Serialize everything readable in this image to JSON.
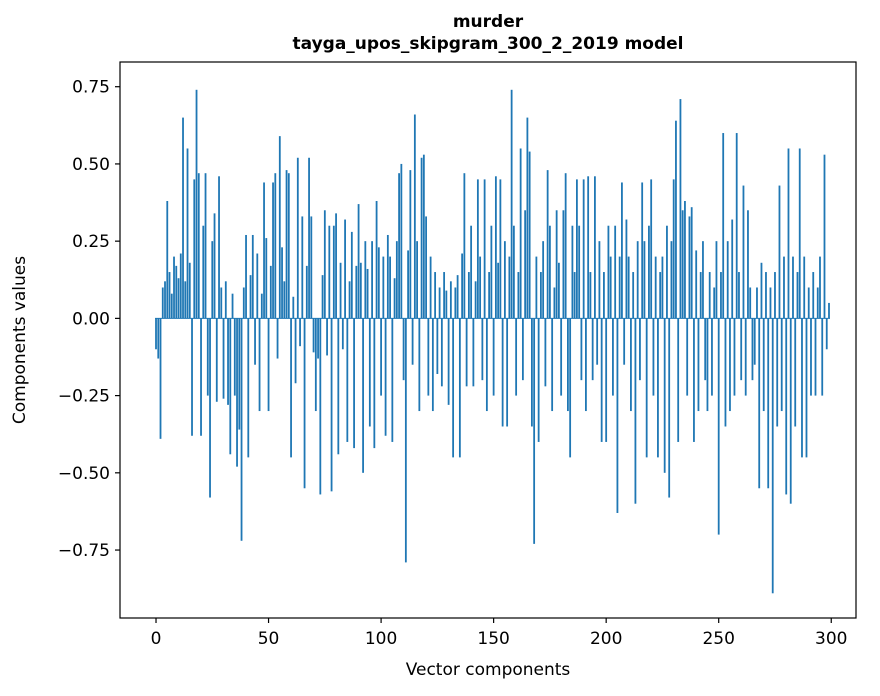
{
  "chart_data": {
    "type": "bar",
    "title": "murder",
    "subtitle": "tayga_upos_skipgram_300_2_2019 model",
    "xlabel": "Vector components",
    "ylabel": "Components values",
    "legend": null,
    "grid": false,
    "bar_color": "#1f77b4",
    "xlim": [
      -16,
      311
    ],
    "ylim": [
      -0.97,
      0.83
    ],
    "xticks": [
      0,
      50,
      100,
      150,
      200,
      250,
      300
    ],
    "yticks": [
      -0.75,
      -0.5,
      -0.25,
      0.0,
      0.25,
      0.5,
      0.75
    ],
    "x_start": 0,
    "values": [
      -0.1,
      -0.13,
      -0.39,
      0.1,
      0.12,
      0.38,
      0.15,
      0.08,
      0.2,
      0.17,
      0.13,
      0.21,
      0.65,
      0.12,
      0.55,
      0.18,
      -0.38,
      0.45,
      0.74,
      0.47,
      -0.38,
      0.3,
      0.47,
      -0.25,
      -0.58,
      0.25,
      0.34,
      -0.27,
      0.46,
      0.1,
      -0.26,
      0.12,
      -0.28,
      -0.44,
      0.08,
      -0.25,
      -0.48,
      -0.36,
      -0.72,
      0.1,
      0.27,
      -0.45,
      0.14,
      0.27,
      -0.15,
      0.21,
      -0.3,
      0.08,
      0.44,
      0.26,
      -0.3,
      0.17,
      0.44,
      0.47,
      -0.13,
      0.59,
      0.23,
      0.12,
      0.48,
      0.47,
      -0.45,
      0.07,
      -0.21,
      0.52,
      -0.09,
      0.33,
      -0.55,
      0.17,
      0.52,
      0.33,
      -0.11,
      -0.3,
      -0.13,
      -0.57,
      0.14,
      0.35,
      -0.12,
      0.3,
      -0.56,
      0.3,
      0.34,
      -0.44,
      0.18,
      -0.1,
      0.32,
      -0.4,
      0.12,
      0.28,
      -0.42,
      0.17,
      0.37,
      0.18,
      -0.5,
      0.25,
      0.16,
      -0.35,
      0.25,
      -0.42,
      0.38,
      0.23,
      -0.25,
      0.2,
      -0.38,
      0.27,
      0.2,
      -0.4,
      0.13,
      0.25,
      0.47,
      0.5,
      -0.2,
      -0.79,
      0.22,
      0.48,
      -0.15,
      0.66,
      0.25,
      -0.3,
      0.52,
      0.53,
      0.33,
      -0.25,
      0.2,
      -0.3,
      0.15,
      -0.18,
      0.1,
      -0.22,
      0.15,
      0.09,
      -0.28,
      0.12,
      -0.45,
      0.1,
      0.14,
      -0.45,
      0.21,
      0.47,
      -0.22,
      0.15,
      0.3,
      -0.22,
      0.12,
      0.45,
      0.2,
      -0.2,
      0.45,
      -0.3,
      0.15,
      0.3,
      -0.25,
      0.46,
      0.18,
      0.45,
      -0.35,
      0.25,
      -0.35,
      0.2,
      0.74,
      0.3,
      -0.25,
      0.15,
      0.55,
      -0.2,
      0.35,
      0.65,
      0.54,
      -0.35,
      -0.73,
      0.2,
      -0.4,
      0.15,
      0.25,
      -0.22,
      0.48,
      0.3,
      -0.3,
      0.1,
      0.35,
      0.18,
      -0.25,
      0.35,
      0.47,
      -0.3,
      -0.45,
      0.3,
      0.15,
      0.45,
      0.3,
      -0.2,
      0.45,
      -0.3,
      0.46,
      0.15,
      -0.2,
      0.46,
      -0.15,
      0.25,
      -0.4,
      0.15,
      -0.4,
      0.3,
      0.2,
      -0.25,
      0.3,
      -0.63,
      0.2,
      0.44,
      -0.15,
      0.32,
      0.2,
      -0.3,
      0.15,
      -0.6,
      0.25,
      -0.2,
      0.44,
      0.25,
      -0.45,
      0.3,
      0.45,
      -0.25,
      0.2,
      -0.45,
      0.15,
      0.2,
      -0.5,
      0.3,
      -0.58,
      0.25,
      0.45,
      0.64,
      -0.4,
      0.71,
      0.35,
      0.38,
      -0.25,
      0.33,
      0.36,
      -0.4,
      0.22,
      -0.3,
      0.15,
      0.25,
      -0.2,
      -0.3,
      0.15,
      -0.25,
      0.1,
      0.25,
      -0.7,
      0.15,
      0.6,
      -0.35,
      0.25,
      -0.3,
      0.32,
      -0.25,
      0.6,
      0.15,
      -0.2,
      0.43,
      -0.25,
      0.35,
      0.1,
      -0.2,
      -0.15,
      0.1,
      -0.55,
      0.18,
      -0.3,
      0.15,
      -0.55,
      0.1,
      -0.89,
      0.15,
      -0.35,
      0.43,
      -0.3,
      0.2,
      -0.57,
      0.55,
      -0.6,
      0.2,
      -0.35,
      0.15,
      0.55,
      -0.45,
      0.2,
      -0.45,
      0.1,
      -0.25,
      0.15,
      -0.25,
      0.1,
      0.2,
      -0.25,
      0.53,
      -0.1,
      0.05
    ]
  }
}
